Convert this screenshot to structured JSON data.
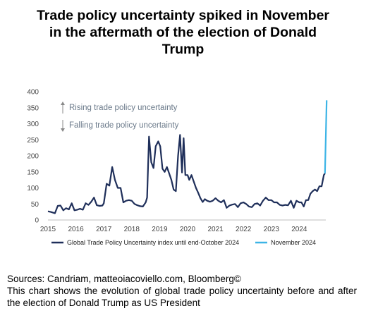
{
  "title_lines": [
    "Trade policy uncertainty spiked in November",
    "in the aftermath of the election of Donald",
    "Trump"
  ],
  "footer": {
    "sources": "Sources: Candriam, matteoiacoviello.com, Bloomberg©",
    "description": "This chart shows the evolution of global trade policy uncertainty before and after the election of Donald Trump as US President"
  },
  "chart_data": {
    "type": "line",
    "title": "Trade policy uncertainty spiked in November in the aftermath of the election of Donald Trump",
    "ylim": [
      0,
      400
    ],
    "yticks": [
      0,
      50,
      100,
      150,
      200,
      250,
      300,
      350,
      400
    ],
    "xlim": [
      2015,
      2024.95
    ],
    "xticks": [
      "2015",
      "2016",
      "2017",
      "2018",
      "2019",
      "2020",
      "2021",
      "2022",
      "2023",
      "2024"
    ],
    "grid": false,
    "legend_position": "bottom",
    "annotations": [
      {
        "text": "Rising trade policy uncertainty",
        "arrow": "up"
      },
      {
        "text": "Falling trade policy uncertainty",
        "arrow": "down"
      }
    ],
    "series": [
      {
        "name": "Global Trade Policy Uncertainty index until end-October 2024",
        "color": "#1f2f5a",
        "points": [
          [
            2015.0,
            27
          ],
          [
            2015.1,
            25
          ],
          [
            2015.25,
            21
          ],
          [
            2015.35,
            44
          ],
          [
            2015.45,
            45
          ],
          [
            2015.55,
            30
          ],
          [
            2015.65,
            37
          ],
          [
            2015.75,
            33
          ],
          [
            2015.85,
            52
          ],
          [
            2015.95,
            30
          ],
          [
            2016.05,
            32
          ],
          [
            2016.15,
            35
          ],
          [
            2016.25,
            32
          ],
          [
            2016.35,
            52
          ],
          [
            2016.45,
            47
          ],
          [
            2016.55,
            57
          ],
          [
            2016.65,
            70
          ],
          [
            2016.75,
            46
          ],
          [
            2016.85,
            44
          ],
          [
            2016.95,
            45
          ],
          [
            2017.0,
            52
          ],
          [
            2017.1,
            113
          ],
          [
            2017.2,
            107
          ],
          [
            2017.3,
            165
          ],
          [
            2017.4,
            125
          ],
          [
            2017.5,
            100
          ],
          [
            2017.6,
            100
          ],
          [
            2017.7,
            55
          ],
          [
            2017.8,
            60
          ],
          [
            2017.9,
            62
          ],
          [
            2018.0,
            60
          ],
          [
            2018.1,
            50
          ],
          [
            2018.2,
            46
          ],
          [
            2018.3,
            43
          ],
          [
            2018.4,
            42
          ],
          [
            2018.5,
            55
          ],
          [
            2018.55,
            70
          ],
          [
            2018.62,
            260
          ],
          [
            2018.7,
            180
          ],
          [
            2018.78,
            162
          ],
          [
            2018.86,
            230
          ],
          [
            2018.95,
            245
          ],
          [
            2019.02,
            230
          ],
          [
            2019.1,
            160
          ],
          [
            2019.18,
            150
          ],
          [
            2019.26,
            165
          ],
          [
            2019.34,
            145
          ],
          [
            2019.42,
            125
          ],
          [
            2019.5,
            95
          ],
          [
            2019.58,
            90
          ],
          [
            2019.66,
            200
          ],
          [
            2019.73,
            265
          ],
          [
            2019.8,
            148
          ],
          [
            2019.86,
            255
          ],
          [
            2019.92,
            140
          ],
          [
            2020.0,
            140
          ],
          [
            2020.06,
            125
          ],
          [
            2020.14,
            140
          ],
          [
            2020.22,
            120
          ],
          [
            2020.3,
            100
          ],
          [
            2020.38,
            85
          ],
          [
            2020.46,
            68
          ],
          [
            2020.54,
            56
          ],
          [
            2020.62,
            65
          ],
          [
            2020.7,
            60
          ],
          [
            2020.8,
            57
          ],
          [
            2020.9,
            60
          ],
          [
            2021.0,
            68
          ],
          [
            2021.1,
            60
          ],
          [
            2021.2,
            55
          ],
          [
            2021.3,
            62
          ],
          [
            2021.4,
            38
          ],
          [
            2021.5,
            45
          ],
          [
            2021.6,
            48
          ],
          [
            2021.7,
            50
          ],
          [
            2021.8,
            40
          ],
          [
            2021.9,
            52
          ],
          [
            2022.0,
            55
          ],
          [
            2022.1,
            50
          ],
          [
            2022.2,
            42
          ],
          [
            2022.3,
            40
          ],
          [
            2022.4,
            50
          ],
          [
            2022.5,
            52
          ],
          [
            2022.6,
            45
          ],
          [
            2022.7,
            60
          ],
          [
            2022.8,
            70
          ],
          [
            2022.9,
            62
          ],
          [
            2023.0,
            62
          ],
          [
            2023.1,
            55
          ],
          [
            2023.2,
            55
          ],
          [
            2023.3,
            47
          ],
          [
            2023.4,
            45
          ],
          [
            2023.5,
            47
          ],
          [
            2023.6,
            46
          ],
          [
            2023.7,
            60
          ],
          [
            2023.8,
            38
          ],
          [
            2023.9,
            60
          ],
          [
            2024.0,
            55
          ],
          [
            2024.08,
            55
          ],
          [
            2024.16,
            42
          ],
          [
            2024.24,
            62
          ],
          [
            2024.32,
            62
          ],
          [
            2024.4,
            82
          ],
          [
            2024.48,
            90
          ],
          [
            2024.56,
            95
          ],
          [
            2024.64,
            90
          ],
          [
            2024.72,
            105
          ],
          [
            2024.8,
            105
          ],
          [
            2024.88,
            140
          ],
          [
            2024.92,
            145
          ]
        ]
      },
      {
        "name": "November 2024",
        "color": "#3cb4e6",
        "points": [
          [
            2024.92,
            145
          ],
          [
            2024.98,
            373
          ]
        ]
      }
    ]
  }
}
